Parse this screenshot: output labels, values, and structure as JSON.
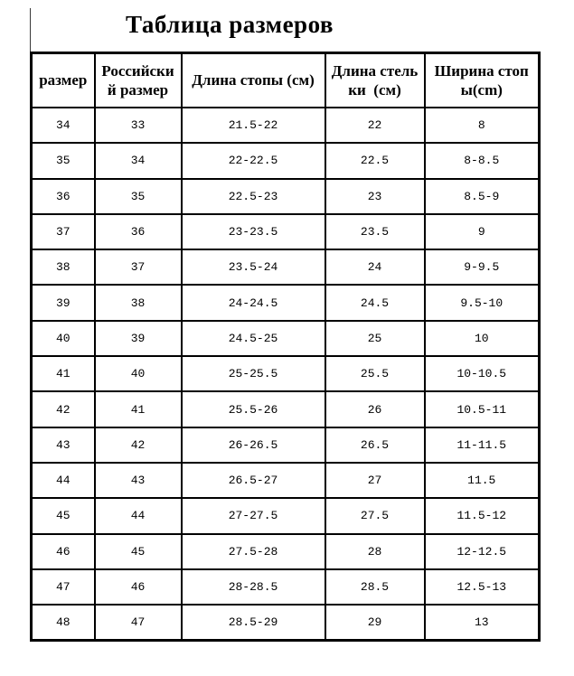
{
  "title": "Таблица размеров",
  "colors": {
    "background": "#ffffff",
    "border": "#000000",
    "text": "#000000"
  },
  "table": {
    "headers": [
      "размер",
      "Российски\nй размер",
      "Длина стопы (см)",
      "Длина стель\nки  (см)",
      "Ширина стоп\nы(cm)"
    ],
    "rows": [
      [
        "34",
        "33",
        "21.5-22",
        "22",
        "8"
      ],
      [
        "35",
        "34",
        "22-22.5",
        "22.5",
        "8-8.5"
      ],
      [
        "36",
        "35",
        "22.5-23",
        "23",
        "8.5-9"
      ],
      [
        "37",
        "36",
        "23-23.5",
        "23.5",
        "9"
      ],
      [
        "38",
        "37",
        "23.5-24",
        "24",
        "9-9.5"
      ],
      [
        "39",
        "38",
        "24-24.5",
        "24.5",
        "9.5-10"
      ],
      [
        "40",
        "39",
        "24.5-25",
        "25",
        "10"
      ],
      [
        "41",
        "40",
        "25-25.5",
        "25.5",
        "10-10.5"
      ],
      [
        "42",
        "41",
        "25.5-26",
        "26",
        "10.5-11"
      ],
      [
        "43",
        "42",
        "26-26.5",
        "26.5",
        "11-11.5"
      ],
      [
        "44",
        "43",
        "26.5-27",
        "27",
        "11.5"
      ],
      [
        "45",
        "44",
        "27-27.5",
        "27.5",
        "11.5-12"
      ],
      [
        "46",
        "45",
        "27.5-28",
        "28",
        "12-12.5"
      ],
      [
        "47",
        "46",
        "28-28.5",
        "28.5",
        "12.5-13"
      ],
      [
        "48",
        "47",
        "28.5-29",
        "29",
        "13"
      ]
    ]
  }
}
